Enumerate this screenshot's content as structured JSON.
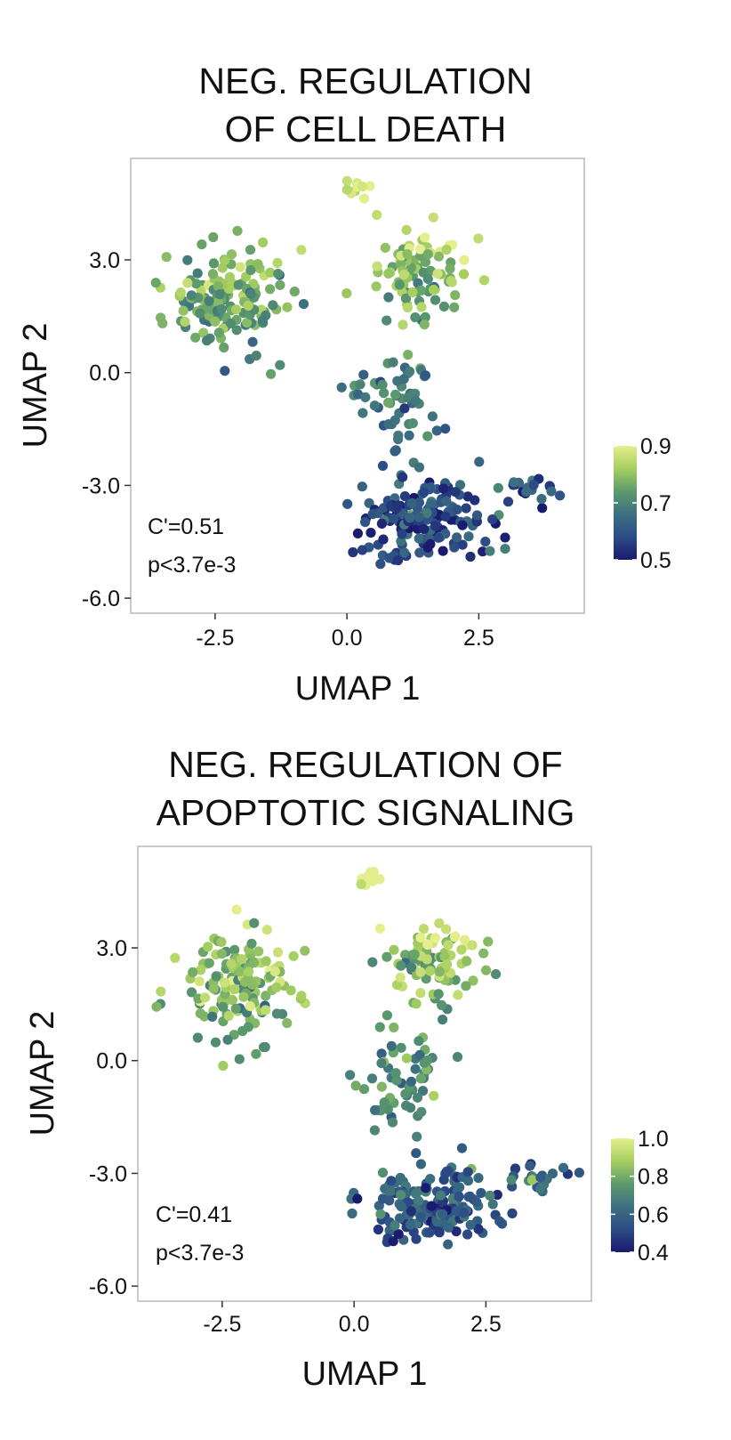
{
  "chart_data": [
    {
      "type": "scatter",
      "title_line1": "NEG. REGULATION",
      "title_line2": "OF CELL DEATH",
      "xlabel": "UMAP 1",
      "ylabel": "UMAP 2",
      "xlim": [
        -4.1,
        4.5
      ],
      "ylim": [
        -6.4,
        5.7
      ],
      "xticks": [
        "-2.5",
        "0.0",
        "2.5"
      ],
      "xtick_values": [
        -2.5,
        0.0,
        2.5
      ],
      "yticks": [
        "3.0",
        "0.0",
        "-3.0",
        "-6.0"
      ],
      "ytick_values": [
        3.0,
        0.0,
        -3.0,
        -6.0
      ],
      "grid": false,
      "annotation_line1": "C'=0.51",
      "annotation_line2": "p<3.7e-3",
      "colorbar": {
        "min": 0.5,
        "max": 0.9,
        "ticks": [
          "0.9",
          "0.7",
          "0.5"
        ],
        "tick_values": [
          0.9,
          0.7,
          0.5
        ]
      },
      "colormap": [
        "#1a1a6e",
        "#2c4c86",
        "#3c7080",
        "#5c9a6c",
        "#a6cf60",
        "#e5ee8c"
      ],
      "seed": 11,
      "value_bias": 0.0
    },
    {
      "type": "scatter",
      "title_line1": "NEG. REGULATION OF",
      "title_line2": "APOPTOTIC SIGNALING",
      "xlabel": "UMAP 1",
      "ylabel": "UMAP 2",
      "xlim": [
        -4.1,
        4.5
      ],
      "ylim": [
        -6.4,
        5.7
      ],
      "xticks": [
        "-2.5",
        "0.0",
        "2.5"
      ],
      "xtick_values": [
        -2.5,
        0.0,
        2.5
      ],
      "yticks": [
        "3.0",
        "0.0",
        "-3.0",
        "-6.0"
      ],
      "ytick_values": [
        3.0,
        0.0,
        -3.0,
        -6.0
      ],
      "grid": false,
      "annotation_line1": "C'=0.41",
      "annotation_line2": "p<3.7e-3",
      "colorbar": {
        "min": 0.4,
        "max": 1.0,
        "ticks": [
          "1.0",
          "0.8",
          "0.6",
          "0.4"
        ],
        "tick_values": [
          1.0,
          0.8,
          0.6,
          0.4
        ]
      },
      "colormap": [
        "#1a1a6e",
        "#2c4c86",
        "#3c7080",
        "#5c9a6c",
        "#a6cf60",
        "#e5ee8c"
      ],
      "seed": 23,
      "value_bias": 0.06
    }
  ],
  "clusters": [
    {
      "cx": -2.2,
      "cy": 1.9,
      "sx": 1.05,
      "sy": 1.25,
      "n": 150,
      "lo": -3.9,
      "hi": -0.2
    },
    {
      "cx": 1.4,
      "cy": 2.6,
      "sx": 0.85,
      "sy": 1.0,
      "n": 95,
      "lo": -0.2,
      "hi": 2.9
    },
    {
      "cx": 0.9,
      "cy": -0.6,
      "sx": 0.8,
      "sy": 1.3,
      "n": 60,
      "lo": -1.2,
      "hi": 2.6
    },
    {
      "cx": 1.4,
      "cy": -3.9,
      "sx": 1.1,
      "sy": 0.9,
      "n": 170,
      "lo": -1.3,
      "hi": 3.0
    },
    {
      "cx": 3.5,
      "cy": -3.1,
      "sx": 0.55,
      "sy": 0.3,
      "n": 22,
      "lo": 2.6,
      "hi": 4.4
    },
    {
      "cx": 0.3,
      "cy": 4.8,
      "sx": 0.3,
      "sy": 0.3,
      "n": 10,
      "lo": 0.0,
      "hi": 0.6
    }
  ]
}
